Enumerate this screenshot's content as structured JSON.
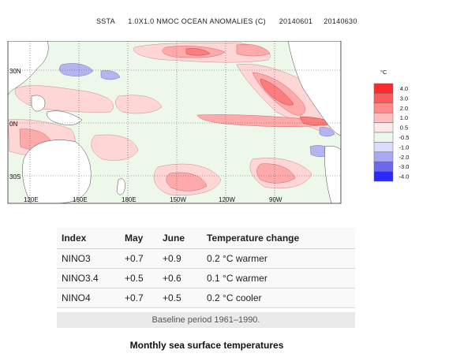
{
  "map": {
    "title": {
      "product": "SSTA",
      "description": "1.0X1.0 NMOC OCEAN ANOMALIES (C)",
      "start_date": "20140601",
      "end_date": "20140630"
    },
    "lat_labels": [
      "30N",
      "0N",
      "30S"
    ],
    "lon_labels": [
      "120E",
      "150E",
      "180E",
      "150W",
      "120W",
      "90W"
    ],
    "legend": {
      "unit": "°C",
      "levels": [
        {
          "label": "4.0",
          "color": "#ff2a2a"
        },
        {
          "label": "3.0",
          "color": "#ff5a5a"
        },
        {
          "label": "2.0",
          "color": "#ff8a8a"
        },
        {
          "label": "1.0",
          "color": "#ffbcbc"
        },
        {
          "label": "0.5",
          "color": "#ffe8e8"
        },
        {
          "label": "-0.5",
          "color": "#eef8ea"
        },
        {
          "label": "-1.0",
          "color": "#dcdcff"
        },
        {
          "label": "-2.0",
          "color": "#a8a8f4"
        },
        {
          "label": "-3.0",
          "color": "#6a6ae8"
        },
        {
          "label": "-4.0",
          "color": "#2a2aff"
        }
      ]
    },
    "colors": {
      "ocean_neutral": "#eef8ea",
      "land": "#ffffff",
      "warm_light": "#ffd6d6",
      "warm": "#ffaaaa",
      "warm_strong": "#ff7c7c",
      "cool": "#b4b4f0"
    }
  },
  "table": {
    "headers": [
      "Index",
      "May",
      "June",
      "Temperature change"
    ],
    "rows": [
      [
        "NINO3",
        "+0.7",
        "+0.9",
        "0.2 °C warmer"
      ],
      [
        "NINO3.4",
        "+0.5",
        "+0.6",
        "0.1 °C warmer"
      ],
      [
        "NINO4",
        "+0.7",
        "+0.5",
        "0.2 °C cooler"
      ]
    ],
    "footer": "Baseline period 1961–1990."
  },
  "caption": "Monthly sea surface temperatures"
}
